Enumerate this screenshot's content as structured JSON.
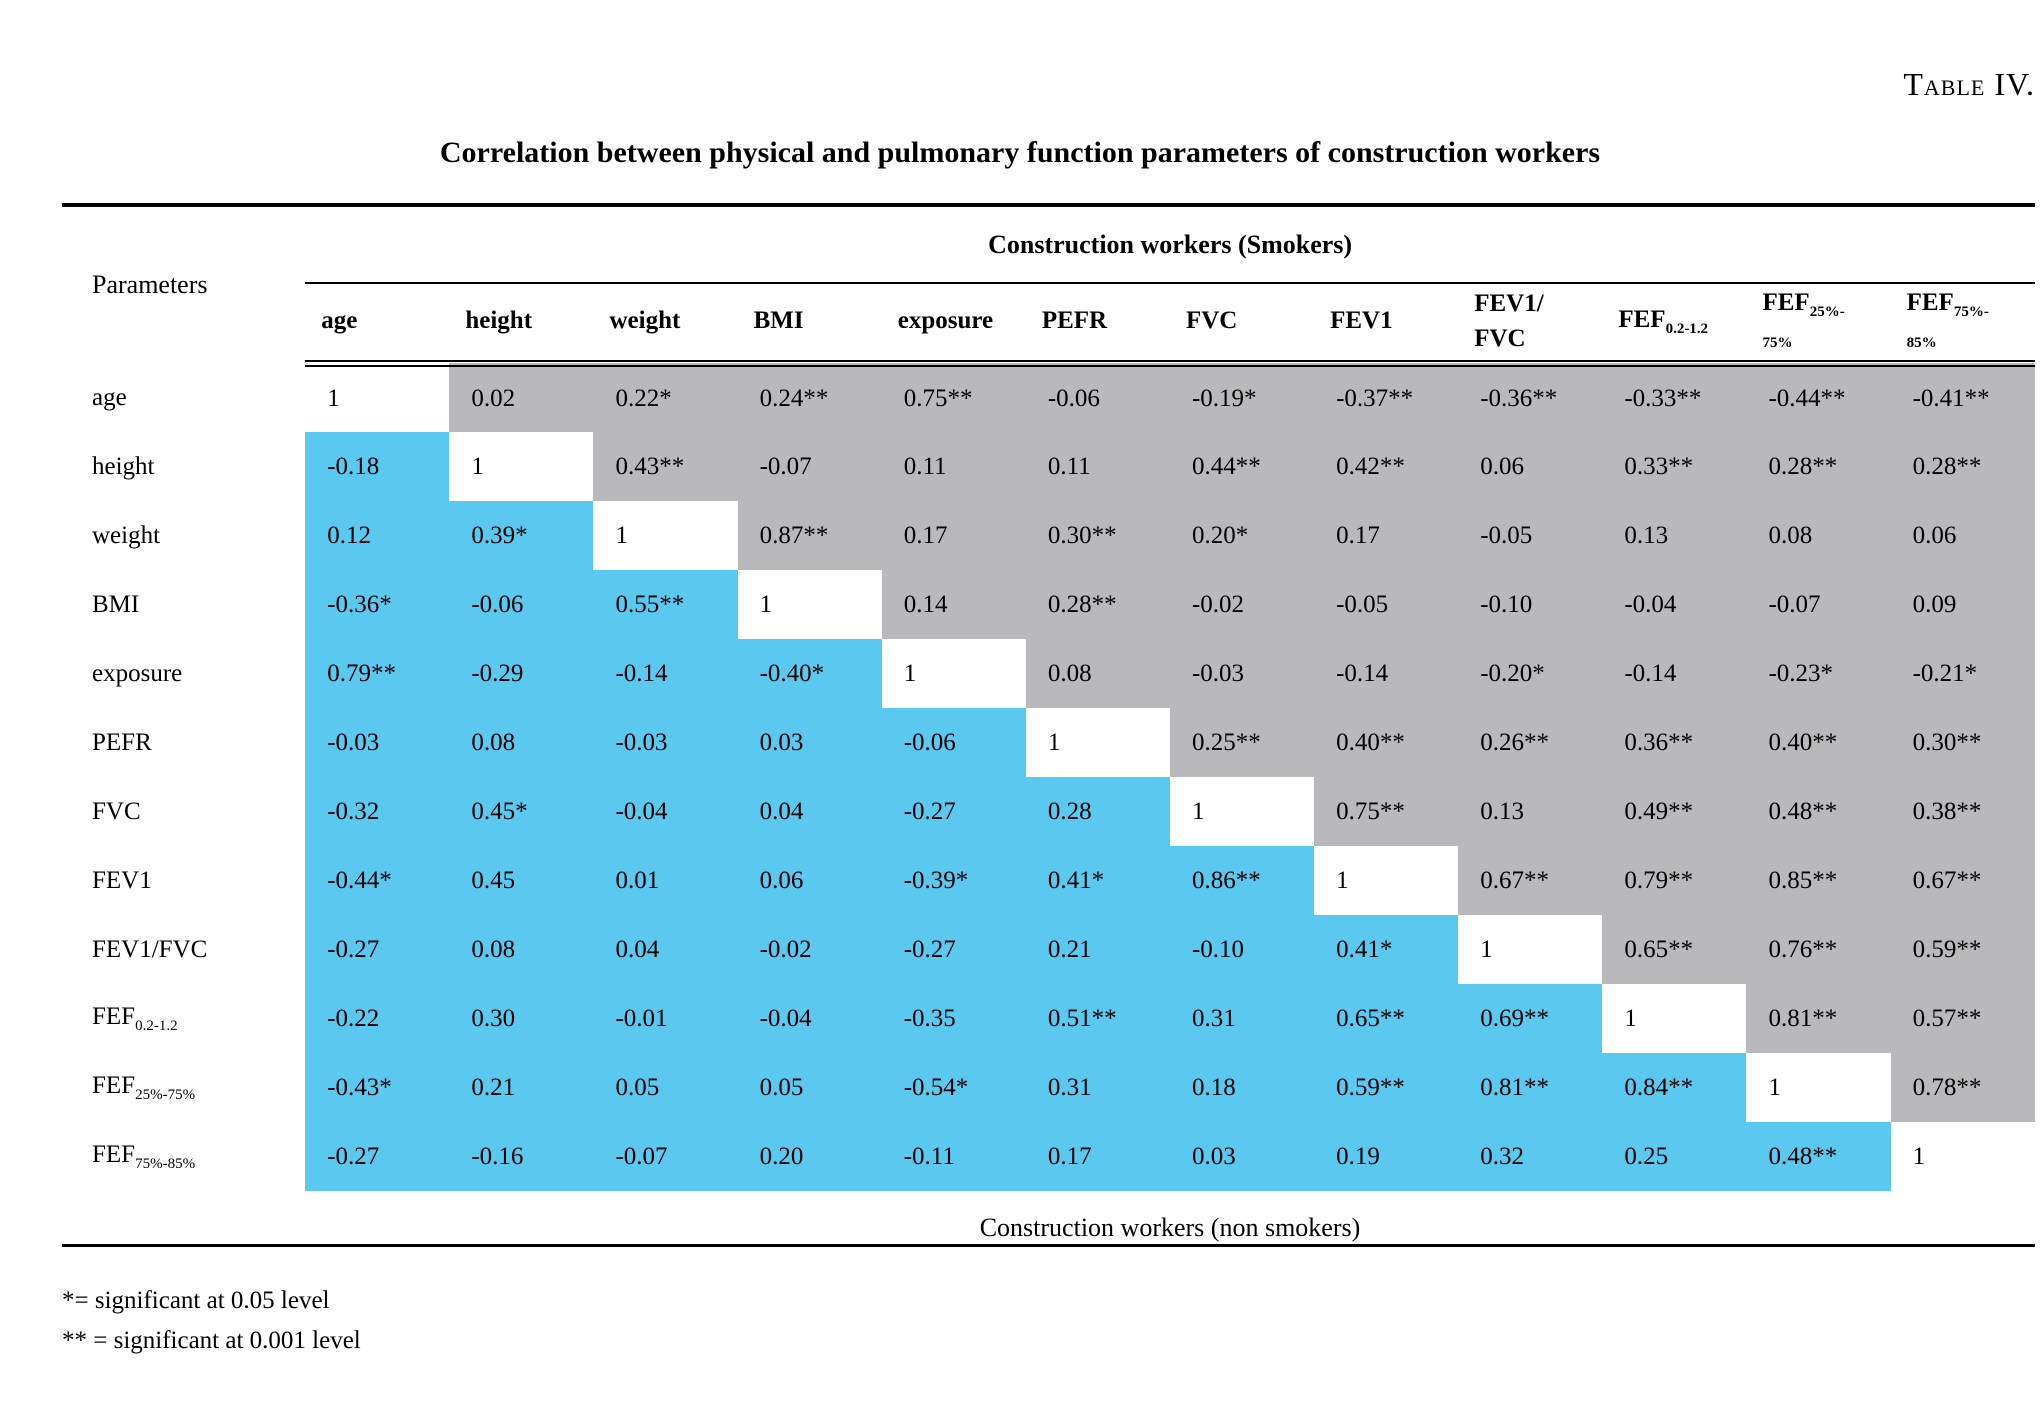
{
  "page": {
    "table_label": "Table IV.",
    "title": "Correlation between physical and pulmonary function parameters of construction workers",
    "parameters_label": "Parameters",
    "smokers_header": "Construction workers (Smokers)",
    "non_smokers_caption": "Construction workers (non smokers)",
    "footnote_1": "*= significant at 0.05 level",
    "footnote_2": "** = significant at 0.001 level"
  },
  "colors": {
    "smokers_cell_bg": "#b9b9bb",
    "non_smokers_cell_bg": "#5bc8f0",
    "diagonal_cell_bg": "#ffffff",
    "text": "#000000"
  },
  "matrix": {
    "columns": [
      {
        "line1": "age"
      },
      {
        "line1": "height"
      },
      {
        "line1": "weight"
      },
      {
        "line1": "BMI"
      },
      {
        "line1": "exposure"
      },
      {
        "line1": "PEFR"
      },
      {
        "line1": "FVC"
      },
      {
        "line1": "FEV1"
      },
      {
        "line1": "FEV1/",
        "line2": "FVC"
      },
      {
        "line1": "FEF",
        "line1_sub": "0.2-1.2"
      },
      {
        "line1": "FEF",
        "line1_sub": "25%-",
        "line2_sub": "75%"
      },
      {
        "line1": "FEF",
        "line1_sub": "75%-",
        "line2_sub": "85%"
      }
    ],
    "rows": [
      {
        "label": "age",
        "values": [
          "1",
          "0.02",
          "0.22*",
          "0.24**",
          "0.75**",
          "-0.06",
          "-0.19*",
          "-0.37**",
          "-0.36**",
          "-0.33**",
          "-0.44**",
          "-0.41**"
        ]
      },
      {
        "label": "height",
        "values": [
          "-0.18",
          "1",
          "0.43**",
          "-0.07",
          "0.11",
          "0.11",
          "0.44**",
          "0.42**",
          "0.06",
          "0.33**",
          "0.28**",
          "0.28**"
        ]
      },
      {
        "label": "weight",
        "values": [
          "0.12",
          "0.39*",
          "1",
          "0.87**",
          "0.17",
          "0.30**",
          "0.20*",
          "0.17",
          "-0.05",
          "0.13",
          "0.08",
          "0.06"
        ]
      },
      {
        "label": "BMI",
        "values": [
          "-0.36*",
          "-0.06",
          "0.55**",
          "1",
          "0.14",
          "0.28**",
          "-0.02",
          "-0.05",
          "-0.10",
          "-0.04",
          "-0.07",
          "0.09"
        ]
      },
      {
        "label": "exposure",
        "values": [
          "0.79**",
          "-0.29",
          "-0.14",
          "-0.40*",
          "1",
          "0.08",
          "-0.03",
          "-0.14",
          "-0.20*",
          "-0.14",
          "-0.23*",
          "-0.21*"
        ]
      },
      {
        "label": "PEFR",
        "values": [
          "-0.03",
          "0.08",
          "-0.03",
          "0.03",
          "-0.06",
          "1",
          "0.25**",
          "0.40**",
          "0.26**",
          "0.36**",
          "0.40**",
          "0.30**"
        ]
      },
      {
        "label": "FVC",
        "values": [
          "-0.32",
          "0.45*",
          "-0.04",
          "0.04",
          "-0.27",
          "0.28",
          "1",
          "0.75**",
          "0.13",
          "0.49**",
          "0.48**",
          "0.38**"
        ]
      },
      {
        "label": "FEV1",
        "values": [
          "-0.44*",
          "0.45",
          "0.01",
          "0.06",
          "-0.39*",
          "0.41*",
          "0.86**",
          "1",
          "0.67**",
          "0.79**",
          "0.85**",
          "0.67**"
        ]
      },
      {
        "label": "FEV1/FVC",
        "values": [
          "-0.27",
          "0.08",
          "0.04",
          "-0.02",
          "-0.27",
          "0.21",
          "-0.10",
          "0.41*",
          "1",
          "0.65**",
          "0.76**",
          "0.59**"
        ]
      },
      {
        "label": "FEF",
        "label_sub": "0.2-1.2",
        "values": [
          "-0.22",
          "0.30",
          "-0.01",
          "-0.04",
          "-0.35",
          "0.51**",
          "0.31",
          "0.65**",
          "0.69**",
          "1",
          "0.81**",
          "0.57**"
        ]
      },
      {
        "label": "FEF",
        "label_sub": "25%-75%",
        "values": [
          "-0.43*",
          "0.21",
          "0.05",
          "0.05",
          "-0.54*",
          "0.31",
          "0.18",
          "0.59**",
          "0.81**",
          "0.84**",
          "1",
          "0.78**"
        ]
      },
      {
        "label": "FEF",
        "label_sub": "75%-85%",
        "values": [
          "-0.27",
          "-0.16",
          "-0.07",
          "0.20",
          "-0.11",
          "0.17",
          "0.03",
          "0.19",
          "0.32",
          "0.25",
          "0.48**",
          "1"
        ]
      }
    ]
  }
}
